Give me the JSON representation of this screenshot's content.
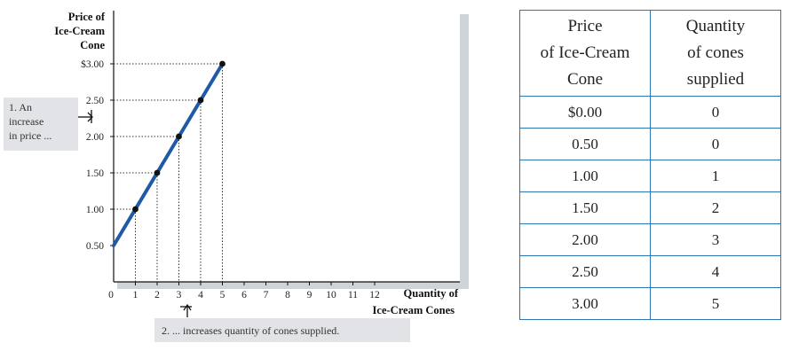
{
  "chart_data": {
    "type": "line",
    "y_axis_title": [
      "Price of",
      "Ice-Cream",
      "Cone"
    ],
    "x_axis_title": [
      "Quantity of",
      "Ice-Cream Cones"
    ],
    "x_ticks": [
      "0",
      "1",
      "2",
      "3",
      "4",
      "5",
      "6",
      "7",
      "8",
      "9",
      "10",
      "11",
      "12"
    ],
    "y_ticks": [
      {
        "value": 0.5,
        "label": "0.50"
      },
      {
        "value": 1.0,
        "label": "1.00"
      },
      {
        "value": 1.5,
        "label": "1.50"
      },
      {
        "value": 2.0,
        "label": "2.00"
      },
      {
        "value": 2.5,
        "label": "2.50"
      },
      {
        "value": 3.0,
        "label": "$3.00"
      }
    ],
    "xlim": [
      0,
      16
    ],
    "ylim": [
      0,
      3.0
    ],
    "series": [
      {
        "line": [
          [
            0,
            0.5
          ],
          [
            5,
            3.0
          ]
        ],
        "points": [
          [
            1,
            1.0
          ],
          [
            2,
            1.5
          ],
          [
            3,
            2.0
          ],
          [
            4,
            2.5
          ],
          [
            5,
            3.0
          ]
        ]
      }
    ],
    "line_color": "#1f5aa6",
    "annotations": {
      "price": [
        "1. An",
        "increase",
        "in price ..."
      ],
      "quantity": "2. ...  increases quantity of  cones supplied."
    }
  },
  "table": {
    "headers": [
      [
        "Price",
        "of Ice-Cream",
        "Cone"
      ],
      [
        "Quantity",
        "of cones",
        "supplied"
      ]
    ],
    "rows": [
      [
        "$0.00",
        "0"
      ],
      [
        "0.50",
        "0"
      ],
      [
        "1.00",
        "1"
      ],
      [
        "1.50",
        "2"
      ],
      [
        "2.00",
        "3"
      ],
      [
        "2.50",
        "4"
      ],
      [
        "3.00",
        "5"
      ]
    ]
  }
}
